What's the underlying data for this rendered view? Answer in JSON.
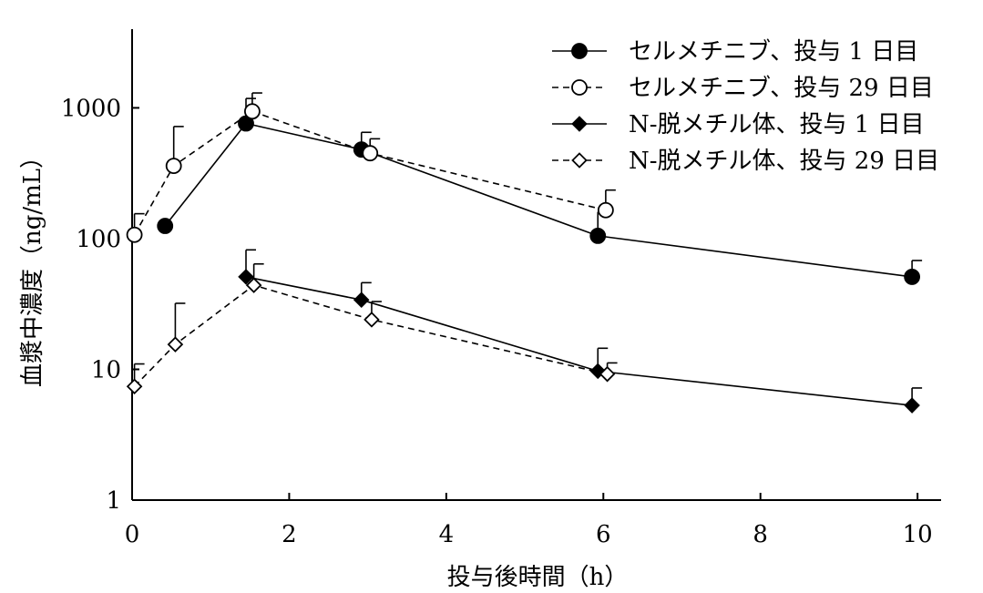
{
  "chart_data": {
    "type": "line",
    "xlabel": "投与後時間（h）",
    "ylabel": "血漿中濃度（ng/mL）",
    "xlim": [
      0,
      10.3
    ],
    "ylim": [
      1,
      4000
    ],
    "yscale": "log",
    "xticks": [
      0,
      2,
      4,
      6,
      8,
      10
    ],
    "xtick_labels": [
      "0",
      "2",
      "4",
      "6",
      "8",
      "10"
    ],
    "yticks": [
      1,
      10,
      100,
      1000
    ],
    "ytick_labels": [
      "1",
      "10",
      "100",
      "1000"
    ],
    "legend_position": "top-right",
    "series": [
      {
        "name": "セルメチニブ、投与 1 日目",
        "style": "solid",
        "marker": "circle-filled",
        "x": [
          0.42,
          1.45,
          2.92,
          5.93,
          9.93
        ],
        "y": [
          125,
          760,
          480,
          105,
          51
        ],
        "err_upper": [
          null,
          1180,
          650,
          160,
          68
        ]
      },
      {
        "name": "セルメチニブ、投与 29 日目",
        "style": "dashed",
        "marker": "circle-open",
        "x": [
          0.03,
          0.53,
          1.53,
          3.03,
          6.03
        ],
        "y": [
          107,
          360,
          940,
          450,
          165
        ],
        "err_upper": [
          155,
          720,
          1300,
          580,
          235
        ]
      },
      {
        "name": "N-脱メチル体、投与 1 日目",
        "style": "solid",
        "marker": "diamond-filled",
        "x": [
          1.45,
          2.92,
          5.93,
          9.93
        ],
        "y": [
          51,
          34,
          9.7,
          5.3
        ],
        "err_upper": [
          82,
          46,
          14.5,
          7.2
        ]
      },
      {
        "name": "N-脱メチル体、投与 29 日目",
        "style": "dashed",
        "marker": "diamond-open",
        "x": [
          0.03,
          0.55,
          1.55,
          3.05,
          6.05
        ],
        "y": [
          7.4,
          15.5,
          44,
          24,
          9.2
        ],
        "err_upper": [
          11,
          32,
          64,
          33,
          11.2
        ]
      }
    ]
  }
}
